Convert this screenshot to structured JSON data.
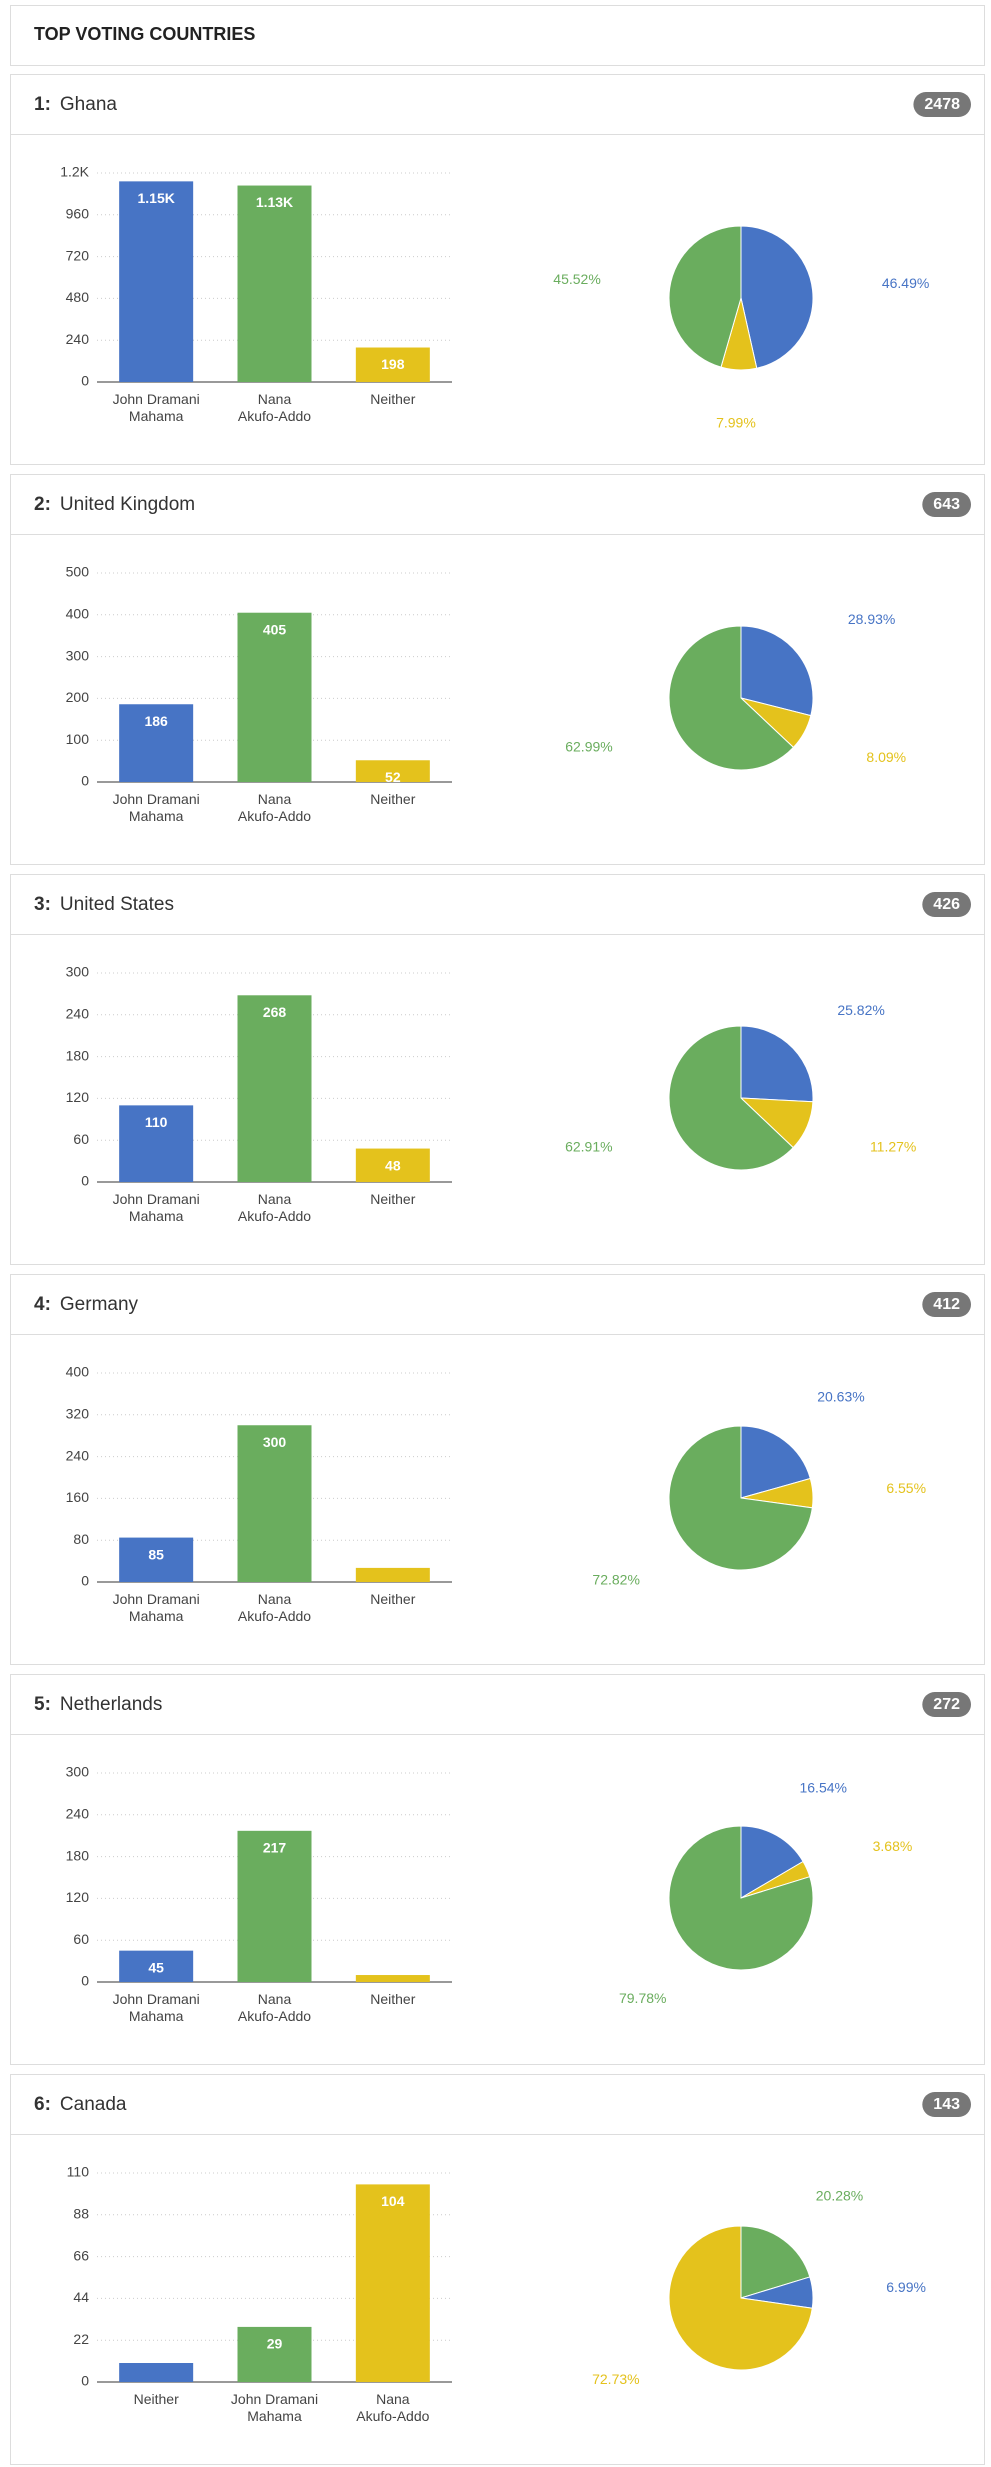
{
  "title": "TOP VOTING COUNTRIES",
  "panels": [
    {
      "rank": "1:",
      "country": "Ghana",
      "count": 2478,
      "chart_data": [
        {
          "type": "bar",
          "categories": [
            "John Dramani Mahama",
            "Nana Akufo-Addo",
            "Neither"
          ],
          "colors": [
            "#4774c5",
            "#6aad5e",
            "#e4c21c"
          ],
          "values": [
            1152,
            1128,
            198
          ],
          "value_labels": [
            "1.15K",
            "1.13K",
            "198"
          ],
          "ylim": [
            0,
            1200
          ],
          "yticks": [
            0,
            240,
            480,
            720,
            960,
            {
              "value": 1200,
              "label": "1.2K"
            }
          ],
          "grid": true
        },
        {
          "type": "pie",
          "colors": [
            "#4774c5",
            "#e4c21c",
            "#6aad5e"
          ],
          "values": [
            46.49,
            7.99,
            45.52
          ],
          "value_labels": [
            "46.49%",
            "7.99%",
            "45.52%"
          ]
        }
      ]
    },
    {
      "rank": "2:",
      "country": "United Kingdom",
      "count": 643,
      "chart_data": [
        {
          "type": "bar",
          "categories": [
            "John Dramani Mahama",
            "Nana Akufo-Addo",
            "Neither"
          ],
          "colors": [
            "#4774c5",
            "#6aad5e",
            "#e4c21c"
          ],
          "values": [
            186,
            405,
            52
          ],
          "ylim": [
            0,
            500
          ],
          "yticks": [
            0,
            100,
            200,
            300,
            400,
            500
          ],
          "grid": true
        },
        {
          "type": "pie",
          "colors": [
            "#4774c5",
            "#e4c21c",
            "#6aad5e"
          ],
          "values": [
            28.93,
            8.09,
            62.99
          ],
          "value_labels": [
            "28.93%",
            "8.09%",
            "62.99%"
          ]
        }
      ]
    },
    {
      "rank": "3:",
      "country": "United States",
      "count": 426,
      "chart_data": [
        {
          "type": "bar",
          "categories": [
            "John Dramani Mahama",
            "Nana Akufo-Addo",
            "Neither"
          ],
          "colors": [
            "#4774c5",
            "#6aad5e",
            "#e4c21c"
          ],
          "values": [
            110,
            268,
            48
          ],
          "ylim": [
            0,
            300
          ],
          "yticks": [
            0,
            60,
            120,
            180,
            240,
            300
          ],
          "grid": true
        },
        {
          "type": "pie",
          "colors": [
            "#4774c5",
            "#e4c21c",
            "#6aad5e"
          ],
          "values": [
            25.82,
            11.27,
            62.91
          ],
          "value_labels": [
            "25.82%",
            "11.27%",
            "62.91%"
          ]
        }
      ]
    },
    {
      "rank": "4:",
      "country": "Germany",
      "count": 412,
      "chart_data": [
        {
          "type": "bar",
          "categories": [
            "John Dramani Mahama",
            "Nana Akufo-Addo",
            "Neither"
          ],
          "colors": [
            "#4774c5",
            "#6aad5e",
            "#e4c21c"
          ],
          "values": [
            85,
            300,
            27
          ],
          "ylim": [
            0,
            400
          ],
          "yticks": [
            0,
            80,
            160,
            240,
            320,
            400
          ],
          "grid": true
        },
        {
          "type": "pie",
          "colors": [
            "#4774c5",
            "#e4c21c",
            "#6aad5e"
          ],
          "values": [
            20.63,
            6.55,
            72.82
          ],
          "value_labels": [
            "20.63%",
            "6.55%",
            "72.82%"
          ]
        }
      ]
    },
    {
      "rank": "5:",
      "country": "Netherlands",
      "count": 272,
      "chart_data": [
        {
          "type": "bar",
          "categories": [
            "John Dramani Mahama",
            "Nana Akufo-Addo",
            "Neither"
          ],
          "colors": [
            "#4774c5",
            "#6aad5e",
            "#e4c21c"
          ],
          "values": [
            45,
            217,
            10
          ],
          "ylim": [
            0,
            300
          ],
          "yticks": [
            0,
            60,
            120,
            180,
            240,
            300
          ],
          "grid": true
        },
        {
          "type": "pie",
          "colors": [
            "#4774c5",
            "#e4c21c",
            "#6aad5e"
          ],
          "values": [
            16.54,
            3.68,
            79.78
          ],
          "value_labels": [
            "16.54%",
            "3.68%",
            "79.78%"
          ]
        }
      ]
    },
    {
      "rank": "6:",
      "country": "Canada",
      "count": 143,
      "chart_data": [
        {
          "type": "bar",
          "categories": [
            "Neither",
            "John Dramani Mahama",
            "Nana Akufo-Addo"
          ],
          "colors": [
            "#4774c5",
            "#6aad5e",
            "#e4c21c"
          ],
          "values": [
            10,
            29,
            104
          ],
          "ylim": [
            0,
            110
          ],
          "yticks": [
            0,
            22,
            44,
            66,
            88,
            110
          ],
          "grid": true
        },
        {
          "type": "pie",
          "colors": [
            "#6aad5e",
            "#4774c5",
            "#e4c21c"
          ],
          "values": [
            20.28,
            6.99,
            72.73
          ],
          "value_labels": [
            "20.28%",
            "6.99%",
            "72.73%"
          ]
        }
      ]
    }
  ]
}
